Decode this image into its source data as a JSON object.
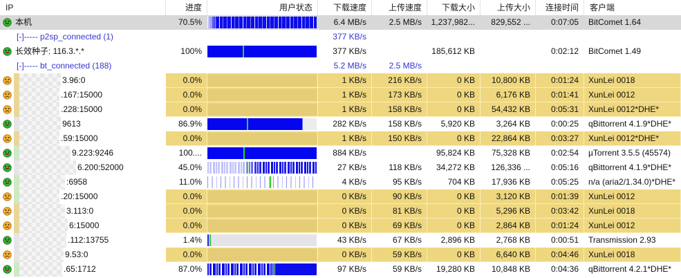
{
  "colors": {
    "selected_row": "#d8d8d8",
    "highlight_row": "#eed77f",
    "bar_blue": "#0505f0",
    "marker_green": "#2ed32e",
    "group_text_blue": "#3434cf",
    "peer_happy_icon": "#39b539",
    "peer_sad_icon": "#f6b13a"
  },
  "table": {
    "columns": [
      "IP",
      "进度",
      "用户状态",
      "下载速度",
      "上传速度",
      "下载大小",
      "上传大小",
      "连接时间",
      "客户端"
    ],
    "sort": {
      "column": "上传速度",
      "indicator": "˅"
    },
    "rows": [
      {
        "type": "local",
        "label": "本机",
        "icon": "happy-peer-icon",
        "selected": true,
        "progress": "70.5%",
        "bar": {
          "kind": "dense-full"
        },
        "dl_speed": "6.4 MB/s",
        "ul_speed": "2.5 MB/s",
        "dl_size": "1,237,982...",
        "ul_size": "829,552 ...",
        "time": "0:07:05",
        "client": "BitComet 1.64"
      },
      {
        "type": "group",
        "label": "[-]----- p2sp_connected (1)",
        "dl_speed": "377 KB/s",
        "ul_speed": ""
      },
      {
        "type": "seed",
        "label": "长效种子: 116.3.*.*",
        "icon": "happy-peer-icon",
        "progress": "100%",
        "bar": {
          "kind": "solid-full",
          "green": 32
        },
        "dl_speed": "377 KB/s",
        "ul_speed": "",
        "dl_size": "185,612 KB",
        "ul_size": "",
        "time": "0:02:12",
        "client": "BitComet 1.49"
      },
      {
        "type": "group",
        "label": "[-]----- bt_connected (188)",
        "dl_speed": "5.2 MB/s",
        "ul_speed": "2.5 MB/s"
      },
      {
        "type": "peer",
        "ip_suffix": "3.96:0",
        "icon": "sad-peer-icon",
        "strip": "tan",
        "blur_w": 60,
        "yellow": true,
        "progress": "0.0%",
        "bar": {
          "kind": "none"
        },
        "dl_speed": "1 KB/s",
        "ul_speed": "216 KB/s",
        "dl_size": "0 KB",
        "ul_size": "10,800 KB",
        "time": "0:01:24",
        "client": "XunLei 0018"
      },
      {
        "type": "peer",
        "ip_suffix": ".167:15000",
        "icon": "sad-peer-icon",
        "strip": "tan",
        "blur_w": 58,
        "yellow": true,
        "progress": "0.0%",
        "bar": {
          "kind": "none"
        },
        "dl_speed": "1 KB/s",
        "ul_speed": "173 KB/s",
        "dl_size": "0 KB",
        "ul_size": "6,176 KB",
        "time": "0:01:41",
        "client": "XunLei 0012"
      },
      {
        "type": "peer",
        "ip_suffix": ".228:15000",
        "icon": "sad-peer-icon",
        "strip": "tan",
        "blur_w": 58,
        "yellow": true,
        "progress": "0.0%",
        "bar": {
          "kind": "none"
        },
        "dl_speed": "1 KB/s",
        "ul_speed": "158 KB/s",
        "dl_size": "0 KB",
        "ul_size": "54,432 KB",
        "time": "0:05:31",
        "client": "XunLei 0012*DHE*"
      },
      {
        "type": "peer",
        "ip_suffix": "9613",
        "icon": "happy-peer-icon",
        "strip": "gray",
        "blur_w": 60,
        "progress": "86.9%",
        "bar": {
          "kind": "solid-part",
          "fill": 86.9,
          "green": 36
        },
        "dl_speed": "282 KB/s",
        "ul_speed": "158 KB/s",
        "dl_size": "5,920 KB",
        "ul_size": "3,264 KB",
        "time": "0:00:25",
        "client": "qBittorrent 4.1.9*DHE*"
      },
      {
        "type": "peer",
        "ip_suffix": ".59:15000",
        "icon": "sad-peer-icon",
        "strip": "tan",
        "blur_w": 58,
        "yellow": true,
        "progress": "0.0%",
        "bar": {
          "kind": "none"
        },
        "dl_speed": "1 KB/s",
        "ul_speed": "150 KB/s",
        "dl_size": "0 KB",
        "ul_size": "22,864 KB",
        "time": "0:03:27",
        "client": "XunLei 0012*DHE*"
      },
      {
        "type": "peer",
        "ip_suffix": "9.223:9246",
        "icon": "happy-peer-icon",
        "strip": "green",
        "blur_w": 74,
        "progress": "100....",
        "bar": {
          "kind": "solid-full",
          "green": 33
        },
        "dl_speed": "884 KB/s",
        "ul_speed": "",
        "dl_size": "95,824 KB",
        "ul_size": "75,328 KB",
        "time": "0:02:54",
        "client": "µTorrent 3.5.5 (45574)"
      },
      {
        "type": "peer",
        "ip_suffix": "6.200:52000",
        "icon": "happy-peer-icon",
        "strip": "gray",
        "blur_w": 82,
        "progress": "45.0%",
        "bar": {
          "kind": "mixed-right",
          "green": 36
        },
        "dl_speed": "27 KB/s",
        "ul_speed": "118 KB/s",
        "dl_size": "34,272 KB",
        "ul_size": "126,336 ...",
        "time": "0:05:16",
        "client": "qBittorrent 4.1.9*DHE*"
      },
      {
        "type": "peer",
        "ip_suffix": ":6958",
        "icon": "happy-peer-icon",
        "strip": "green",
        "blur_w": 66,
        "progress": "11.0%",
        "bar": {
          "kind": "light",
          "green": 57
        },
        "dl_speed": "4 KB/s",
        "ul_speed": "95 KB/s",
        "dl_size": "704 KB",
        "ul_size": "17,936 KB",
        "time": "0:05:25",
        "client": "n/a (aria2/1.34.0)*DHE*"
      },
      {
        "type": "peer",
        "ip_suffix": ".20:15000",
        "icon": "sad-peer-icon",
        "strip": "green",
        "blur_w": 58,
        "yellow": true,
        "progress": "0.0%",
        "bar": {
          "kind": "none"
        },
        "dl_speed": "0 KB/s",
        "ul_speed": "90 KB/s",
        "dl_size": "0 KB",
        "ul_size": "3,120 KB",
        "time": "0:01:39",
        "client": "XunLei 0012"
      },
      {
        "type": "peer",
        "ip_suffix": "3.113:0",
        "icon": "sad-peer-icon",
        "strip": "tan",
        "blur_w": 66,
        "yellow": true,
        "progress": "0.0%",
        "bar": {
          "kind": "none"
        },
        "dl_speed": "0 KB/s",
        "ul_speed": "81 KB/s",
        "dl_size": "0 KB",
        "ul_size": "5,296 KB",
        "time": "0:03:42",
        "client": "XunLei 0018"
      },
      {
        "type": "peer",
        "ip_suffix": "6:15000",
        "icon": "sad-peer-icon",
        "strip": "tan",
        "blur_w": 70,
        "yellow": true,
        "progress": "0.0%",
        "bar": {
          "kind": "none"
        },
        "dl_speed": "0 KB/s",
        "ul_speed": "69 KB/s",
        "dl_size": "0 KB",
        "ul_size": "2,864 KB",
        "time": "0:01:24",
        "client": "XunLei 0012"
      },
      {
        "type": "peer",
        "ip_suffix": ".112:13755",
        "icon": "happy-peer-icon",
        "strip": "gray",
        "blur_w": 68,
        "progress": "1.4%",
        "bar": {
          "kind": "gray-empty",
          "green": 2
        },
        "dl_speed": "43 KB/s",
        "ul_speed": "67 KB/s",
        "dl_size": "2,896 KB",
        "ul_size": "2,768 KB",
        "time": "0:00:51",
        "client": "Transmission 2.93"
      },
      {
        "type": "peer",
        "ip_suffix": "9.53:0",
        "icon": "sad-peer-icon",
        "strip": "gray",
        "blur_w": 64,
        "yellow": true,
        "progress": "0.0%",
        "bar": {
          "kind": "none"
        },
        "dl_speed": "0 KB/s",
        "ul_speed": "59 KB/s",
        "dl_size": "0 KB",
        "ul_size": "6,640 KB",
        "time": "0:04:46",
        "client": "XunLei 0018"
      },
      {
        "type": "peer",
        "ip_suffix": ".65:1712",
        "icon": "happy-peer-icon",
        "strip": "green",
        "blur_w": 62,
        "progress": "87.0%",
        "bar": {
          "kind": "dense-right",
          "green": 60
        },
        "dl_speed": "97 KB/s",
        "ul_speed": "59 KB/s",
        "dl_size": "19,280 KB",
        "ul_size": "10,848 KB",
        "time": "0:04:36",
        "client": "qBittorrent 4.2.1*DHE*"
      }
    ]
  }
}
